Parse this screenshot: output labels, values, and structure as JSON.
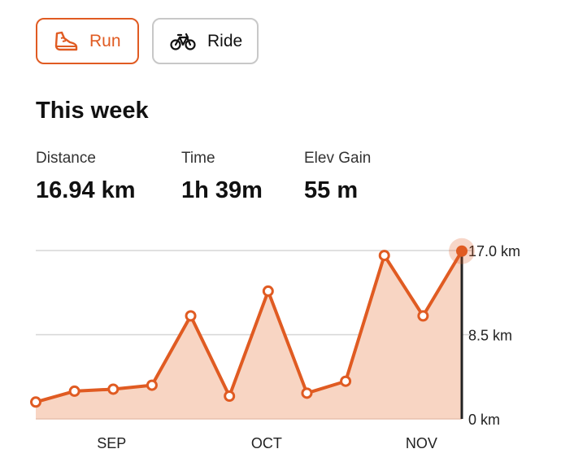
{
  "tabs": [
    {
      "label": "Run",
      "icon": "shoe-icon",
      "selected": true
    },
    {
      "label": "Ride",
      "icon": "bicycle-icon",
      "selected": false
    }
  ],
  "heading": "This week",
  "stats": [
    {
      "label": "Distance",
      "value": "16.94 km"
    },
    {
      "label": "Time",
      "value": "1h 39m"
    },
    {
      "label": "Elev Gain",
      "value": "55 m"
    }
  ],
  "colors": {
    "accent": "#e05b22",
    "fill": "#f8d5c3",
    "grid": "#d6d6d6",
    "inactive_border": "#c8c8c8"
  },
  "chart_data": {
    "type": "area",
    "unit": "km",
    "y_ticks": [
      {
        "value": 0,
        "label": "0 km"
      },
      {
        "value": 8.5,
        "label": "8.5 km"
      },
      {
        "value": 17,
        "label": "17.0 km"
      }
    ],
    "ylim": [
      0,
      17
    ],
    "x_labels": [
      {
        "index": 2,
        "label": "SEP"
      },
      {
        "index": 6,
        "label": "OCT"
      },
      {
        "index": 10,
        "label": "NOV"
      }
    ],
    "values": [
      1.7,
      2.8,
      3.0,
      3.4,
      10.4,
      2.3,
      12.9,
      2.6,
      3.8,
      16.5,
      10.4,
      16.94
    ],
    "highlight_index": 11,
    "grid": true
  }
}
